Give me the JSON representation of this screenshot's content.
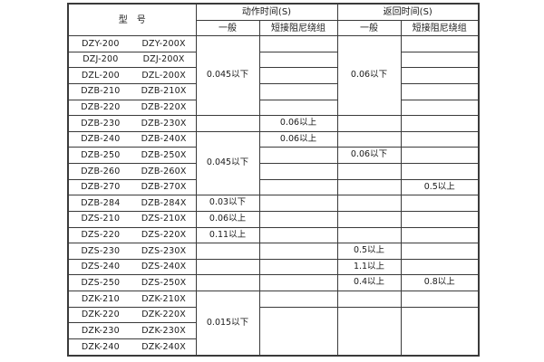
{
  "table": {
    "header": {
      "model": "型　号",
      "action_time": "动作时间(S)",
      "return_time": "返回时间(S)",
      "general": "一般",
      "damping": "短接阻尼绕组"
    },
    "value_columns": [
      "action-general",
      "action-damping",
      "return-general",
      "return-damping"
    ],
    "rows": [
      {
        "models": [
          "DZY-200",
          "DZY-200X"
        ],
        "cells": [
          {
            "text": "0.045以下",
            "rowspan": 5
          },
          {
            "text": ""
          },
          {
            "text": "0.06以下",
            "rowspan": 5
          },
          {
            "text": ""
          }
        ]
      },
      {
        "models": [
          "DZJ-200",
          "DZJ-200X"
        ],
        "cells": [
          null,
          {
            "text": ""
          },
          null,
          {
            "text": ""
          }
        ]
      },
      {
        "models": [
          "DZL-200",
          "DZL-200X"
        ],
        "cells": [
          null,
          {
            "text": ""
          },
          null,
          {
            "text": ""
          }
        ]
      },
      {
        "models": [
          "DZB-210",
          "DZB-210X"
        ],
        "cells": [
          null,
          {
            "text": ""
          },
          null,
          {
            "text": ""
          }
        ]
      },
      {
        "models": [
          "DZB-220",
          "DZB-220X"
        ],
        "cells": [
          null,
          {
            "text": ""
          },
          null,
          {
            "text": ""
          }
        ]
      },
      {
        "models": [
          "DZB-230",
          "DZB-230X"
        ],
        "cells": [
          {
            "text": ""
          },
          {
            "text": "0.06以上"
          },
          {
            "text": ""
          },
          {
            "text": ""
          }
        ]
      },
      {
        "models": [
          "DZB-240",
          "DZB-240X"
        ],
        "cells": [
          {
            "text": "0.045以下",
            "rowspan": 4
          },
          {
            "text": "0.06以上"
          },
          {
            "text": ""
          },
          {
            "text": ""
          }
        ]
      },
      {
        "models": [
          "DZB-250",
          "DZB-250X"
        ],
        "cells": [
          null,
          {
            "text": ""
          },
          {
            "text": "0.06以下"
          },
          {
            "text": ""
          }
        ]
      },
      {
        "models": [
          "DZB-260",
          "DZB-260X"
        ],
        "cells": [
          null,
          {
            "text": ""
          },
          {
            "text": ""
          },
          {
            "text": ""
          }
        ]
      },
      {
        "models": [
          "DZB-270",
          "DZB-270X"
        ],
        "cells": [
          null,
          {
            "text": ""
          },
          {
            "text": ""
          },
          {
            "text": "0.5以上"
          }
        ]
      },
      {
        "models": [
          "DZB-284",
          "DZB-284X"
        ],
        "cells": [
          {
            "text": "0.03以下"
          },
          {
            "text": ""
          },
          {
            "text": ""
          },
          {
            "text": ""
          }
        ]
      },
      {
        "models": [
          "DZS-210",
          "DZS-210X"
        ],
        "cells": [
          {
            "text": "0.06以上"
          },
          {
            "text": ""
          },
          {
            "text": ""
          },
          {
            "text": ""
          }
        ]
      },
      {
        "models": [
          "DZS-220",
          "DZS-220X"
        ],
        "cells": [
          {
            "text": "0.11以上"
          },
          {
            "text": ""
          },
          {
            "text": ""
          },
          {
            "text": ""
          }
        ]
      },
      {
        "models": [
          "DZS-230",
          "DZS-230X"
        ],
        "cells": [
          {
            "text": ""
          },
          {
            "text": ""
          },
          {
            "text": "0.5以上"
          },
          {
            "text": ""
          }
        ]
      },
      {
        "models": [
          "DZS-240",
          "DZS-240X"
        ],
        "cells": [
          {
            "text": ""
          },
          {
            "text": ""
          },
          {
            "text": "1.1以上"
          },
          {
            "text": ""
          }
        ]
      },
      {
        "models": [
          "DZS-250",
          "DZS-250X"
        ],
        "cells": [
          {
            "text": ""
          },
          {
            "text": ""
          },
          {
            "text": "0.4以上"
          },
          {
            "text": "0.8以上"
          }
        ]
      },
      {
        "models": [
          "DZK-210",
          "DZK-210X"
        ],
        "cells": [
          {
            "text": "0.015以下",
            "rowspan": 4
          },
          {
            "text": ""
          },
          {
            "text": ""
          },
          {
            "text": ""
          }
        ]
      },
      {
        "models": [
          "DZK-220",
          "DZK-220X"
        ],
        "cells": [
          null,
          {
            "text": "",
            "rowspan": 3
          },
          {
            "text": "",
            "rowspan": 3
          },
          {
            "text": "",
            "rowspan": 3
          }
        ]
      },
      {
        "models": [
          "DZK-230",
          "DZK-230X"
        ],
        "cells": [
          null,
          null,
          null,
          null
        ]
      },
      {
        "models": [
          "DZK-240",
          "DZK-240X"
        ],
        "cells": [
          null,
          null,
          null,
          null
        ]
      }
    ],
    "colors": {
      "border": "#3a3a3a",
      "text": "#1a1a1a",
      "background": "#ffffff"
    }
  }
}
